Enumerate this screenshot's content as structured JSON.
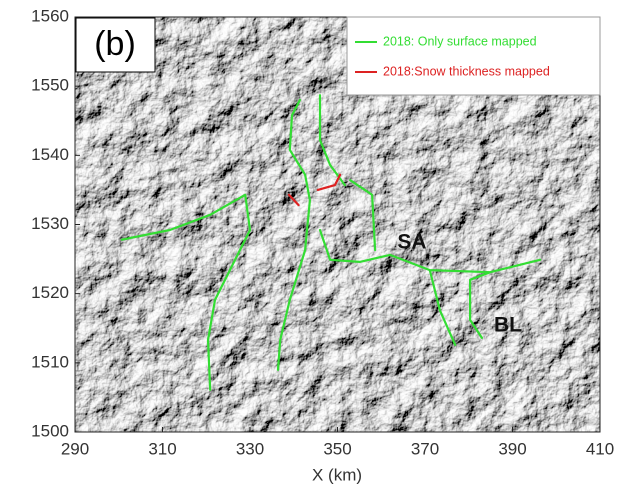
{
  "chart_data": {
    "type": "line",
    "panel_label": "(b)",
    "xlabel": "X (km)",
    "xlim": [
      290,
      410
    ],
    "xticks": [
      290,
      310,
      330,
      350,
      370,
      390,
      410
    ],
    "ylim": [
      1500,
      1560
    ],
    "yticks": [
      1500,
      1510,
      1520,
      1530,
      1540,
      1550,
      1560
    ],
    "legend_position": "upper right",
    "annotations": [
      "SA",
      "BL"
    ],
    "series": [
      {
        "name": "2018: Only surface mapped",
        "color": "#33dd33",
        "x": [
          300.7,
          311.7,
          320.9,
          328.9,
          330.0,
          325.4,
          322.0,
          320.4,
          320.9,
          null,
          341.4,
          339.6,
          339.1,
          342.6,
          343.7,
          342.6,
          339.1,
          336.9,
          336.4,
          null,
          346.0,
          346.0,
          348.3,
          351.7,
          null,
          346.0,
          348.3,
          355.1,
          362.0,
          371.1,
          384.9,
          396.3,
          null,
          371.1,
          373.4,
          376.9,
          null,
          384.9,
          380.3,
          380.3,
          383.0,
          null,
          352.9,
          357.9,
          358.6
        ],
        "values": [
          1527.8,
          1529.2,
          1531.4,
          1534.3,
          1529.2,
          1523.4,
          1519.1,
          1513.3,
          1506.1,
          null,
          1548.0,
          1545.8,
          1540.8,
          1537.2,
          1533.5,
          1526.3,
          1519.1,
          1513.3,
          1509.0,
          null,
          1548.7,
          1542.2,
          1538.6,
          1535.7,
          null,
          1529.2,
          1524.9,
          1524.6,
          1525.6,
          1523.4,
          1523.1,
          1524.9,
          null,
          1523.4,
          1517.6,
          1512.6,
          null,
          1523.1,
          1522.0,
          1516.2,
          1513.6,
          null,
          1536.4,
          1534.3,
          1526.3
        ]
      },
      {
        "name": "2018:Snow thickness mapped",
        "color": "#dd2222",
        "x": [
          338.9,
          341.1,
          null,
          345.5,
          349.4,
          350.6
        ],
        "values": [
          1534.3,
          1532.8,
          null,
          1535.0,
          1535.7,
          1537.2
        ]
      }
    ]
  }
}
